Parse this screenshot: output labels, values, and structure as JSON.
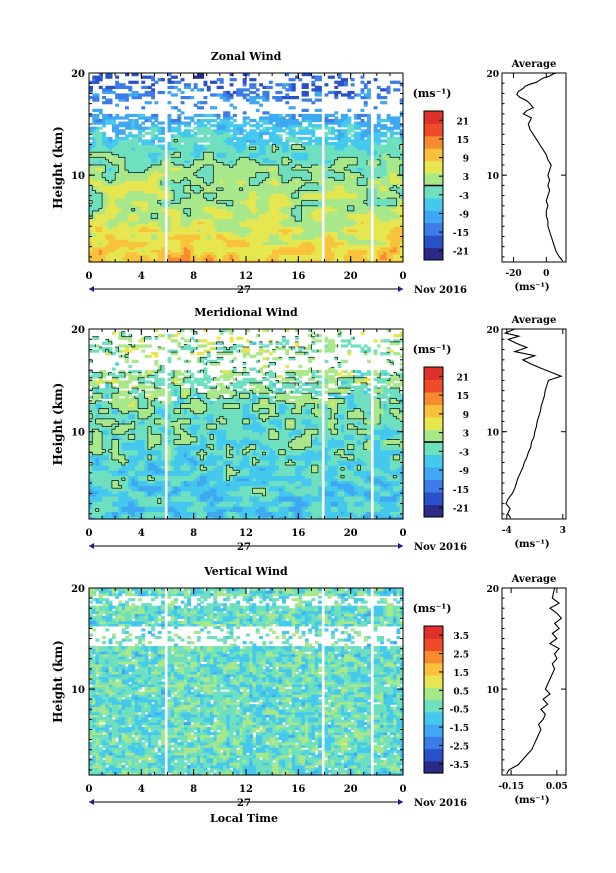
{
  "figure": {
    "xlabel_bottom": "Local Time",
    "date_label": "Nov 2016",
    "day_label": "27",
    "height_axis_label": "Height (km)",
    "unit_label": "(ms⁻¹)",
    "average_title": "Average"
  },
  "chart_data": [
    {
      "type": "heatmap",
      "title": "Zonal Wind",
      "ylabel": "Height (km)",
      "xlim": [
        0,
        24
      ],
      "ylim": [
        1.5,
        20
      ],
      "x_ticks": [
        "0",
        "4",
        "8",
        "12",
        "16",
        "20",
        "0"
      ],
      "y_ticks": [
        "10",
        "20"
      ],
      "colorbar": {
        "label": "(ms⁻¹)",
        "ticks": [
          "21",
          "15",
          "9",
          "3",
          "-3",
          "-9",
          "-15",
          "-21"
        ],
        "range": [
          -24,
          24
        ],
        "colors": [
          "#2c2a86",
          "#2850c8",
          "#3c7ce8",
          "#3fa8f0",
          "#45c8ee",
          "#6ee0c0",
          "#a8e88a",
          "#e6e650",
          "#f8c23c",
          "#f88a30",
          "#ef4a2a",
          "#e0302a"
        ]
      },
      "gaps_hours": [
        [
          5.8,
          6.1
        ],
        [
          17.8,
          18.1
        ],
        [
          21.5,
          21.8
        ],
        [
          22.4,
          22.6
        ]
      ],
      "contour_value": 0
    },
    {
      "type": "line",
      "title": "Average",
      "xlabel": "(ms⁻¹)",
      "x_ticks": [
        "-20",
        "0"
      ],
      "xlim": [
        -27,
        12
      ],
      "ylim": [
        1.5,
        20
      ],
      "y_ticks": [
        "10",
        "20"
      ],
      "series": [
        {
          "x": [
            10,
            8,
            6,
            5,
            4,
            3,
            2,
            1,
            1,
            0,
            0,
            1,
            0,
            1,
            2,
            1,
            2,
            1,
            2,
            3,
            1,
            0,
            -2,
            -4,
            -6,
            -8,
            -10,
            -11,
            -10,
            -9,
            -14,
            -12,
            -8,
            -10,
            -12,
            -16,
            -18,
            -17,
            -14,
            -13,
            -10,
            -6,
            -4,
            -2,
            0,
            2,
            3,
            4,
            6
          ],
          "y": [
            1.6,
            2.0,
            2.5,
            3.0,
            3.5,
            4.0,
            4.5,
            5.0,
            5.5,
            6.0,
            6.5,
            7.0,
            7.5,
            8.0,
            8.5,
            9.0,
            9.5,
            10.0,
            10.5,
            11.0,
            11.5,
            12.0,
            12.5,
            13.0,
            13.5,
            14.0,
            14.5,
            15.0,
            15.3,
            15.6,
            16.0,
            16.3,
            16.6,
            17.0,
            17.3,
            17.6,
            17.9,
            18.2,
            18.5,
            18.7,
            18.9,
            19.1,
            19.3,
            19.5,
            19.6,
            19.7,
            19.8,
            19.9,
            20.0
          ]
        }
      ]
    },
    {
      "type": "heatmap",
      "title": "Meridional Wind",
      "ylabel": "Height (km)",
      "xlim": [
        0,
        24
      ],
      "ylim": [
        1.5,
        20
      ],
      "x_ticks": [
        "0",
        "4",
        "8",
        "12",
        "16",
        "20",
        "0"
      ],
      "y_ticks": [
        "10",
        "20"
      ],
      "colorbar": {
        "label": "(ms⁻¹)",
        "ticks": [
          "21",
          "15",
          "9",
          "3",
          "-3",
          "-9",
          "-15",
          "-21"
        ],
        "range": [
          -24,
          24
        ],
        "colors": [
          "#2c2a86",
          "#2850c8",
          "#3c7ce8",
          "#3fa8f0",
          "#45c8ee",
          "#6ee0c0",
          "#a8e88a",
          "#e6e650",
          "#f8c23c",
          "#f88a30",
          "#ef4a2a",
          "#e0302a"
        ]
      },
      "gaps_hours": [
        [
          5.8,
          6.1
        ],
        [
          17.8,
          18.1
        ],
        [
          21.5,
          21.8
        ],
        [
          22.4,
          22.6
        ]
      ],
      "contour_value": 0
    },
    {
      "type": "line",
      "title": "Average",
      "xlabel": "(ms⁻¹)",
      "x_ticks": [
        "-4",
        "3"
      ],
      "xlim": [
        -4.6,
        3.4
      ],
      "ylim": [
        1.5,
        20
      ],
      "y_ticks": [
        "10",
        "20"
      ],
      "series": [
        {
          "x": [
            -3.5,
            -3.9,
            -3.6,
            -4.1,
            -3.8,
            -3.3,
            -3.0,
            -2.8,
            -2.6,
            -2.3,
            -2.0,
            -1.8,
            -1.5,
            -1.3,
            -1.0,
            -0.9,
            -0.6,
            -0.5,
            -0.3,
            -0.2,
            0.0,
            0.2,
            0.3,
            0.5,
            0.7,
            0.8,
            1.0,
            1.2,
            2.8,
            1.5,
            0.2,
            -1.0,
            -2.0,
            -0.5,
            -3.0,
            -1.5,
            -2.8,
            -3.8,
            -2.5,
            -4.2,
            -3.0
          ],
          "y": [
            1.6,
            2.0,
            2.5,
            3.0,
            3.5,
            4.0,
            4.5,
            5.0,
            5.5,
            6.0,
            6.5,
            7.0,
            7.5,
            8.0,
            8.5,
            9.0,
            9.5,
            10.0,
            10.5,
            11.0,
            11.5,
            12.0,
            12.5,
            13.0,
            13.5,
            14.0,
            14.5,
            15.0,
            15.4,
            15.8,
            16.2,
            16.6,
            17.0,
            17.4,
            17.8,
            18.2,
            18.6,
            19.0,
            19.3,
            19.6,
            20.0
          ]
        }
      ]
    },
    {
      "type": "heatmap",
      "title": "Vertical Wind",
      "ylabel": "Height (km)",
      "xlabel": "Local Time",
      "xlim": [
        0,
        24
      ],
      "ylim": [
        1.5,
        20
      ],
      "x_ticks": [
        "0",
        "4",
        "8",
        "12",
        "16",
        "20",
        "0"
      ],
      "y_ticks": [
        "10",
        "20"
      ],
      "colorbar": {
        "label": "(ms⁻¹)",
        "ticks": [
          "3.5",
          "2.5",
          "1.5",
          "0.5",
          "-0.5",
          "-1.5",
          "-2.5",
          "-3.5"
        ],
        "range": [
          -4,
          4
        ],
        "colors": [
          "#2c2a86",
          "#2850c8",
          "#3c7ce8",
          "#3fa8f0",
          "#45c8ee",
          "#6ee0c0",
          "#a8e88a",
          "#e6e650",
          "#f8c23c",
          "#f88a30",
          "#ef4a2a",
          "#e0302a"
        ]
      },
      "gaps_hours": [
        [
          5.8,
          6.1
        ],
        [
          17.8,
          18.1
        ],
        [
          21.5,
          21.8
        ],
        [
          22.4,
          22.6
        ]
      ]
    },
    {
      "type": "line",
      "title": "Average",
      "xlabel": "(ms⁻¹)",
      "x_ticks": [
        "-0.15",
        "0.05"
      ],
      "xlim": [
        -0.19,
        0.09
      ],
      "ylim": [
        1.5,
        20
      ],
      "y_ticks": [
        "10",
        "20"
      ],
      "series": [
        {
          "x": [
            -0.17,
            -0.16,
            -0.12,
            -0.1,
            -0.08,
            -0.06,
            -0.05,
            -0.04,
            -0.03,
            -0.02,
            -0.03,
            -0.01,
            0.0,
            -0.02,
            0.01,
            -0.01,
            0.02,
            0.0,
            0.01,
            0.02,
            0.03,
            0.04,
            0.03,
            0.05,
            0.04,
            0.06,
            0.02,
            0.05,
            0.03,
            0.06,
            0.04,
            0.07,
            0.05,
            0.02,
            0.06,
            0.03,
            0.04
          ],
          "y": [
            1.6,
            2.0,
            2.5,
            3.0,
            3.5,
            4.0,
            4.5,
            5.0,
            5.5,
            6.0,
            6.5,
            7.0,
            7.5,
            8.0,
            8.5,
            9.0,
            9.5,
            10.0,
            10.5,
            11.0,
            11.5,
            12.0,
            12.5,
            13.0,
            13.5,
            14.0,
            14.5,
            15.0,
            15.5,
            16.0,
            16.5,
            17.0,
            17.5,
            18.0,
            18.5,
            19.0,
            20.0
          ]
        }
      ]
    }
  ]
}
